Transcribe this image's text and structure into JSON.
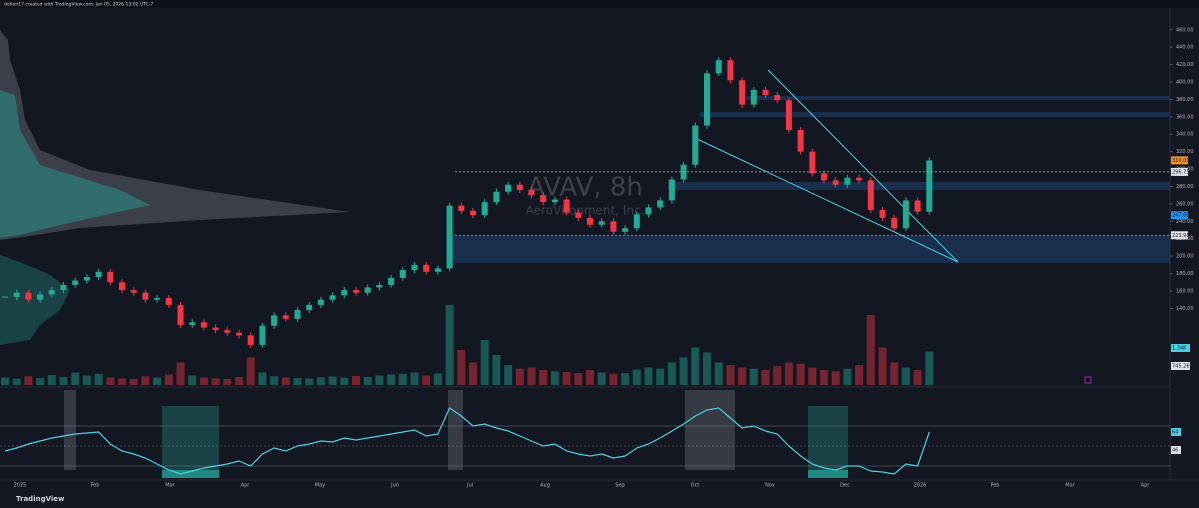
{
  "header": {
    "caption": "dotlon17 created with TradingView.com, Jan 05, 2026 13:02 UTC-7"
  },
  "watermark": {
    "symbol": "AVAV, 8h",
    "name": "AeroVironment, Inc."
  },
  "footer": {
    "brand": "TradingView"
  },
  "chart_data": {
    "type": "candlestick",
    "x_labels": [
      "2025",
      "Feb",
      "Mar",
      "Apr",
      "May",
      "Jun",
      "Jul",
      "Aug",
      "Sep",
      "Oct",
      "Nov",
      "Dec",
      "2026",
      "Feb",
      "Mar",
      "Apr"
    ],
    "closes": [
      153,
      158,
      150,
      156,
      161,
      167,
      172,
      176,
      182,
      170,
      161,
      158,
      150,
      152,
      144,
      121,
      124,
      118,
      115,
      112,
      109,
      98,
      120,
      132,
      128,
      138,
      144,
      150,
      155,
      161,
      158,
      164,
      167,
      175,
      184,
      190,
      182,
      186,
      258,
      252,
      247,
      262,
      274,
      282,
      276,
      270,
      262,
      265,
      250,
      244,
      236,
      240,
      228,
      232,
      248,
      256,
      264,
      288,
      305,
      350,
      410,
      425,
      402,
      374,
      391,
      385,
      379,
      345,
      320,
      295,
      287,
      282,
      290,
      287,
      253,
      244,
      232,
      264,
      251,
      310
    ],
    "up_color": "#22ab94",
    "down_color": "#f23645",
    "ylim": [
      52,
      485
    ],
    "yticks": [
      {
        "value": 140,
        "label": "140.00"
      },
      {
        "value": 160,
        "label": "160.00"
      },
      {
        "value": 180,
        "label": "180.00"
      },
      {
        "value": 200,
        "label": "200.00"
      },
      {
        "value": 220,
        "label": "220.00"
      },
      {
        "value": 240,
        "label": "240.00"
      },
      {
        "value": 260,
        "label": "260.00"
      },
      {
        "value": 280,
        "label": "280.00"
      },
      {
        "value": 300,
        "label": "300.00"
      },
      {
        "value": 320,
        "label": "320.00"
      },
      {
        "value": 340,
        "label": "340.00"
      },
      {
        "value": 360,
        "label": "360.00"
      },
      {
        "value": 380,
        "label": "380.00"
      },
      {
        "value": 400,
        "label": "400.00"
      },
      {
        "value": 420,
        "label": "420.00"
      },
      {
        "value": 440,
        "label": "440.00"
      },
      {
        "value": 460,
        "label": "460.00"
      }
    ],
    "price_levels": [
      {
        "value": 310,
        "label": "310.00",
        "color": "#f7931a",
        "dashed": false
      },
      {
        "value": 296.75,
        "label": "296.75",
        "color": "#e0e3eb",
        "dashed": true
      },
      {
        "value": 247,
        "label": "247.00",
        "color": "#2196f3",
        "dashed": false
      },
      {
        "value": 223.98,
        "label": "223.98",
        "color": "#e0e3eb",
        "dashed": true
      }
    ],
    "volumes": [
      300,
      250,
      350,
      280,
      400,
      320,
      500,
      380,
      450,
      300,
      260,
      240,
      350,
      300,
      420,
      900,
      380,
      300,
      260,
      240,
      320,
      1100,
      500,
      350,
      300,
      280,
      260,
      310,
      340,
      290,
      360,
      320,
      380,
      420,
      450,
      500,
      380,
      460,
      3200,
      1400,
      900,
      1800,
      1200,
      800,
      650,
      700,
      600,
      550,
      520,
      480,
      600,
      500,
      450,
      480,
      620,
      700,
      650,
      900,
      1100,
      1500,
      1300,
      900,
      800,
      700,
      650,
      600,
      750,
      900,
      850,
      700,
      600,
      550,
      650,
      800,
      2800,
      1500,
      900,
      700,
      600,
      1340
    ],
    "volume_lim": [
      0,
      4000
    ],
    "volume_labels": [
      "1.34K",
      "745.26K"
    ],
    "oscillator": [
      45,
      48,
      52,
      55,
      58,
      60,
      62,
      63,
      64,
      52,
      45,
      42,
      38,
      32,
      26,
      22,
      25,
      28,
      30,
      32,
      35,
      30,
      42,
      48,
      45,
      50,
      52,
      55,
      54,
      58,
      56,
      58,
      60,
      62,
      64,
      66,
      60,
      62,
      88,
      80,
      70,
      72,
      68,
      65,
      60,
      55,
      50,
      52,
      45,
      42,
      40,
      42,
      38,
      40,
      48,
      52,
      58,
      65,
      72,
      80,
      86,
      88,
      78,
      68,
      70,
      65,
      62,
      50,
      40,
      32,
      28,
      26,
      30,
      30,
      25,
      24,
      22,
      32,
      30,
      64
    ],
    "osc_color": "#4dd0e1",
    "osc_lim": [
      18,
      98
    ],
    "osc_levels": [
      70,
      50,
      30
    ],
    "osc_markers": [
      64,
      46
    ]
  }
}
